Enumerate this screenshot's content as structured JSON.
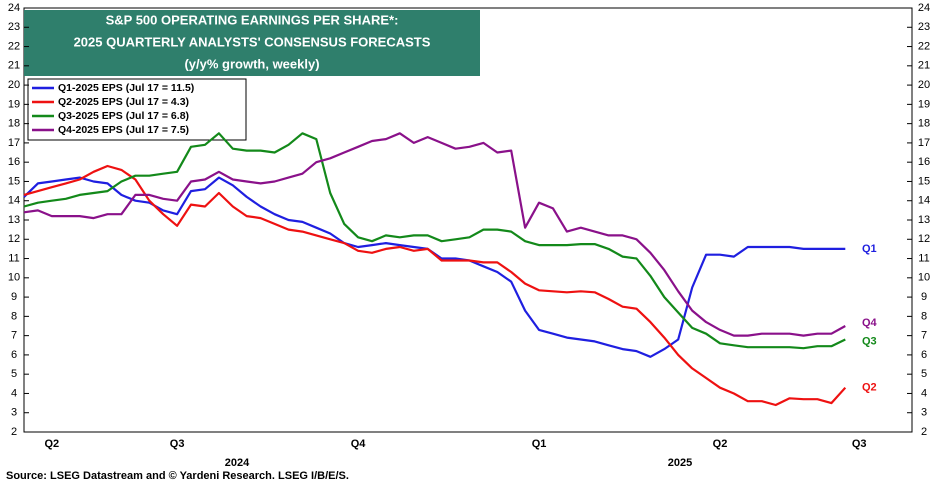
{
  "chart_data": {
    "type": "line",
    "title": [
      "S&P 500 OPERATING EARNINGS PER SHARE*:",
      "2025 QUARTERLY ANALYSTS' CONSENSUS FORECASTS",
      "(y/y% growth, weekly)"
    ],
    "source": "Source: LSEG Datastream and © Yardeni Research. LSEG I/B/E/S.",
    "annotations": [
      "2024",
      "2025"
    ],
    "categories": [
      null,
      null,
      "Q2",
      null,
      null,
      null,
      null,
      null,
      null,
      null,
      null,
      "Q3",
      null,
      null,
      null,
      null,
      null,
      null,
      null,
      null,
      null,
      null,
      null,
      null,
      "Q4",
      null,
      null,
      null,
      null,
      null,
      null,
      null,
      null,
      null,
      null,
      null,
      null,
      "Q1",
      null,
      null,
      null,
      null,
      null,
      null,
      null,
      null,
      null,
      null,
      null,
      null,
      "Q2",
      null,
      null,
      null,
      null,
      null,
      null,
      null,
      null,
      null,
      "Q3",
      null
    ],
    "ylim": [
      2,
      24
    ],
    "yticks": [
      2,
      3,
      4,
      5,
      6,
      7,
      8,
      9,
      10,
      11,
      12,
      13,
      14,
      15,
      16,
      17,
      18,
      19,
      20,
      21,
      22,
      23,
      24
    ],
    "grid": false,
    "series": [
      {
        "name": "Q1-2025 EPS (Jul 17 = 11.5)",
        "label": "Q1",
        "color": "#1f1fe0",
        "values": [
          14.2,
          14.9,
          15.0,
          15.1,
          15.2,
          15.0,
          14.9,
          14.3,
          14.0,
          13.9,
          13.5,
          13.3,
          14.5,
          14.6,
          15.2,
          14.8,
          14.2,
          13.7,
          13.3,
          13.0,
          12.9,
          12.6,
          12.3,
          11.8,
          11.6,
          11.7,
          11.8,
          11.7,
          11.6,
          11.5,
          11.0,
          11.0,
          10.9,
          10.6,
          10.3,
          9.8,
          8.3,
          7.3,
          7.1,
          6.9,
          6.8,
          6.7,
          6.5,
          6.3,
          6.2,
          5.9,
          6.3,
          6.8,
          9.5,
          11.2,
          11.2,
          11.1,
          11.6,
          11.6,
          11.6,
          11.6,
          11.5,
          11.5,
          11.5,
          11.5,
          null,
          null
        ]
      },
      {
        "name": "Q2-2025 EPS (Jul 17 = 4.3)",
        "label": "Q2",
        "color": "#ee1111",
        "values": [
          14.3,
          14.5,
          14.7,
          14.9,
          15.1,
          15.5,
          15.8,
          15.6,
          15.1,
          14.0,
          13.3,
          12.7,
          13.8,
          13.7,
          14.4,
          13.7,
          13.2,
          13.1,
          12.8,
          12.5,
          12.4,
          12.2,
          12.0,
          11.8,
          11.4,
          11.3,
          11.5,
          11.6,
          11.4,
          11.5,
          10.9,
          10.9,
          10.9,
          10.8,
          10.8,
          10.3,
          9.7,
          9.35,
          9.3,
          9.25,
          9.3,
          9.25,
          8.9,
          8.5,
          8.4,
          7.7,
          6.9,
          6.0,
          5.3,
          4.8,
          4.3,
          4.0,
          3.6,
          3.6,
          3.4,
          3.75,
          3.7,
          3.7,
          3.5,
          4.3,
          null,
          null
        ]
      },
      {
        "name": "Q3-2025 EPS (Jul 17 = 6.8)",
        "label": "Q3",
        "color": "#13891a",
        "values": [
          13.7,
          13.9,
          14.0,
          14.1,
          14.3,
          14.4,
          14.5,
          15.0,
          15.3,
          15.3,
          15.4,
          15.5,
          16.8,
          16.9,
          17.5,
          16.7,
          16.6,
          16.6,
          16.5,
          16.9,
          17.5,
          17.2,
          14.4,
          12.8,
          12.1,
          11.9,
          12.2,
          12.1,
          12.2,
          12.2,
          11.9,
          12.0,
          12.1,
          12.5,
          12.5,
          12.4,
          11.9,
          11.7,
          11.7,
          11.7,
          11.75,
          11.75,
          11.5,
          11.1,
          11.0,
          10.1,
          9.0,
          8.2,
          7.4,
          7.1,
          6.6,
          6.5,
          6.4,
          6.4,
          6.4,
          6.4,
          6.35,
          6.45,
          6.45,
          6.8,
          null,
          null
        ]
      },
      {
        "name": "Q4-2025 EPS (Jul 17 = 7.5)",
        "label": "Q4",
        "color": "#8a118a",
        "values": [
          13.4,
          13.5,
          13.2,
          13.2,
          13.2,
          13.1,
          13.3,
          13.3,
          14.3,
          14.3,
          14.1,
          14.0,
          15.0,
          15.1,
          15.5,
          15.1,
          15.0,
          14.9,
          15.0,
          15.2,
          15.4,
          16.0,
          16.2,
          16.5,
          16.8,
          17.1,
          17.2,
          17.5,
          17.0,
          17.3,
          17.0,
          16.7,
          16.8,
          17.0,
          16.5,
          16.6,
          12.6,
          13.9,
          13.6,
          12.4,
          12.6,
          12.4,
          12.2,
          12.2,
          12.0,
          11.3,
          10.4,
          9.3,
          8.3,
          7.7,
          7.3,
          7.0,
          7.0,
          7.1,
          7.1,
          7.1,
          7.0,
          7.1,
          7.1,
          7.5,
          null,
          null
        ]
      }
    ]
  }
}
